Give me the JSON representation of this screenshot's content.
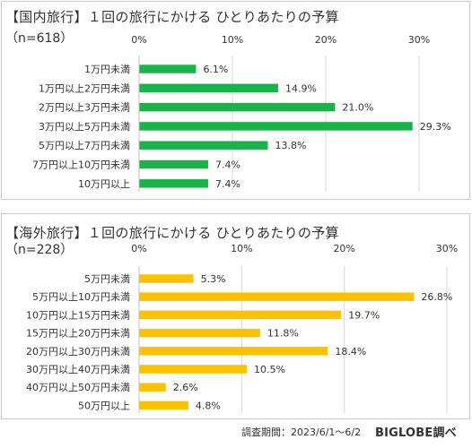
{
  "chart_data": [
    {
      "type": "bar",
      "orientation": "horizontal",
      "title": "【国内旅行】１回の旅行にかける ひとりあたりの予算",
      "n_label": "（n=618）",
      "categories": [
        "1万円未満",
        "1万円以上2万円未満",
        "2万円以上3万円未満",
        "3万円以上5万円未満",
        "5万円以上7万円未満",
        "7万円以上10万円未満",
        "10万円以上"
      ],
      "values": [
        6.1,
        14.9,
        21.0,
        29.3,
        13.8,
        7.4,
        7.4
      ],
      "value_labels": [
        "6.1%",
        "14.9%",
        "21.0%",
        "29.3%",
        "13.8%",
        "7.4%",
        "7.4%"
      ],
      "xlim": [
        0,
        30
      ],
      "ticks": [
        0,
        10,
        20,
        30
      ],
      "tick_labels": [
        "0%",
        "10%",
        "20%",
        "30%"
      ],
      "bar_color": "#1ab34a",
      "grid": true
    },
    {
      "type": "bar",
      "orientation": "horizontal",
      "title": "【海外旅行】１回の旅行にかける ひとりあたりの予算",
      "n_label": "（n=228）",
      "categories": [
        "5万円未満",
        "5万円以上10万円未満",
        "10万円以上15万円未満",
        "15万円以上20万円未満",
        "20万円以上30万円未満",
        "30万円以上40万円未満",
        "40万円以上50万円未満",
        "50万円以上"
      ],
      "values": [
        5.3,
        26.8,
        19.7,
        11.8,
        18.4,
        10.5,
        2.6,
        4.8
      ],
      "value_labels": [
        "5.3%",
        "26.8%",
        "19.7%",
        "11.8%",
        "18.4%",
        "10.5%",
        "2.6%",
        "4.8%"
      ],
      "xlim": [
        0,
        30
      ],
      "ticks": [
        0,
        10,
        20,
        30
      ],
      "tick_labels": [
        "0%",
        "10%",
        "20%",
        "30%"
      ],
      "bar_color": "#fcc200",
      "grid": true
    }
  ],
  "footer": {
    "survey_period": "調査期間：2023/6/1～6/2",
    "source": "BIGLOBE調べ"
  }
}
